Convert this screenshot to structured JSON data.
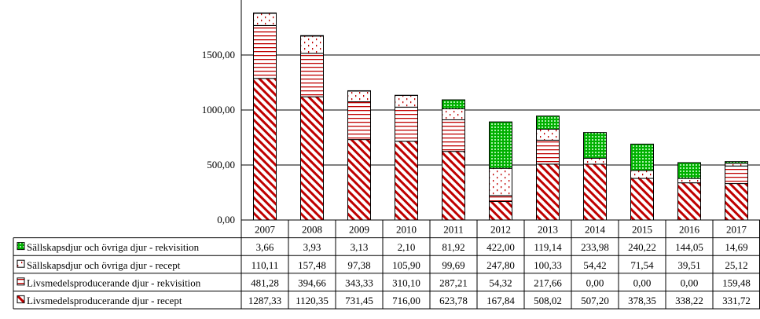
{
  "chart_data": {
    "type": "bar",
    "stacked": true,
    "categories": [
      "2007",
      "2008",
      "2009",
      "2010",
      "2011",
      "2012",
      "2013",
      "2014",
      "2015",
      "2016",
      "2017"
    ],
    "series": [
      {
        "name": "Livsmedelsproducerande djur - recept",
        "pattern": "red-diagonal",
        "color": "#c00000",
        "values": [
          1287.33,
          1120.35,
          731.45,
          716.0,
          623.78,
          167.84,
          508.02,
          507.2,
          378.35,
          338.22,
          331.72
        ],
        "labels": [
          "1287,33",
          "1120,35",
          "731,45",
          "716,00",
          "623,78",
          "167,84",
          "508,02",
          "507,20",
          "378,35",
          "338,22",
          "331,72"
        ]
      },
      {
        "name": "Livsmedelsproducerande djur - rekvisition",
        "pattern": "red-horizontal",
        "color": "#c00000",
        "values": [
          481.28,
          394.66,
          343.33,
          310.1,
          287.21,
          54.32,
          217.66,
          0.0,
          0.0,
          0.0,
          159.48
        ],
        "labels": [
          "481,28",
          "394,66",
          "343,33",
          "310,10",
          "287,21",
          "54,32",
          "217,66",
          "0,00",
          "0,00",
          "0,00",
          "159,48"
        ]
      },
      {
        "name": "Sällskapsdjur och övriga djur - recept",
        "pattern": "red-dots",
        "color": "#c00000",
        "values": [
          110.11,
          157.48,
          97.38,
          105.9,
          99.69,
          247.8,
          100.33,
          54.42,
          71.54,
          39.51,
          25.12
        ],
        "labels": [
          "110,11",
          "157,48",
          "97,38",
          "105,90",
          "99,69",
          "247,80",
          "100,33",
          "54,42",
          "71,54",
          "39,51",
          "25,12"
        ]
      },
      {
        "name": "Sällskapsdjur och övriga djur - rekvisition",
        "pattern": "green-grid",
        "color": "#00a000",
        "values": [
          3.66,
          3.93,
          3.13,
          2.1,
          81.92,
          422.0,
          119.14,
          233.98,
          240.22,
          144.05,
          14.69
        ],
        "labels": [
          "3,66",
          "3,93",
          "3,13",
          "2,10",
          "81,92",
          "422,00",
          "119,14",
          "233,98",
          "240,22",
          "144,05",
          "14,69"
        ]
      }
    ],
    "table_rows_top_to_bottom": [
      3,
      2,
      1,
      0
    ],
    "ylim": [
      0,
      2000
    ],
    "yticks": [
      0,
      500,
      1000,
      1500
    ],
    "ytick_labels": [
      "0,00",
      "500,00",
      "1000,00",
      "1500,00"
    ],
    "grid": true,
    "legend": "data-table-below"
  }
}
